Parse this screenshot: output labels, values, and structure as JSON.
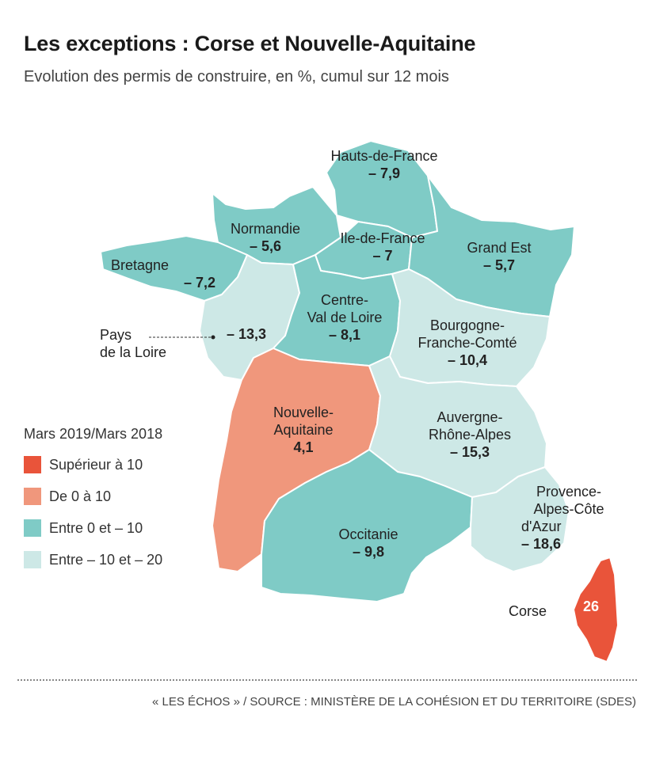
{
  "title": "Les exceptions : Corse et Nouvelle-Aquitaine",
  "subtitle": "Evolution des permis de construire, en %, cumul sur 12 mois",
  "colors": {
    "superieur_10": "#e9543a",
    "de_0_a_10": "#f0977c",
    "entre_0_et_m10": "#7fcbc6",
    "entre_m10_et_m20": "#cde8e6",
    "border": "#ffffff"
  },
  "regions": [
    {
      "id": "hauts-de-france",
      "name": "Hauts-de-France",
      "value": "– 7,9",
      "class": "entre_0_et_m10"
    },
    {
      "id": "normandie",
      "name": "Normandie",
      "value": "– 5,6",
      "class": "entre_0_et_m10"
    },
    {
      "id": "ile-de-france",
      "name": "Ile-de-France",
      "value": "– 7",
      "class": "entre_0_et_m10"
    },
    {
      "id": "grand-est",
      "name": "Grand Est",
      "value": "– 5,7",
      "class": "entre_0_et_m10"
    },
    {
      "id": "bretagne",
      "name": "Bretagne",
      "value": "– 7,2",
      "class": "entre_0_et_m10"
    },
    {
      "id": "pays-de-la-loire",
      "name_line1": "Pays",
      "name_line2": "de la Loire",
      "value": "– 13,3",
      "class": "entre_m10_et_m20"
    },
    {
      "id": "centre-val-de-loire",
      "name_line1": "Centre-",
      "name_line2": "Val de Loire",
      "value": "– 8,1",
      "class": "entre_0_et_m10"
    },
    {
      "id": "bourgogne-franche-comte",
      "name_line1": "Bourgogne-",
      "name_line2": "Franche-Comté",
      "value": "– 10,4",
      "class": "entre_m10_et_m20"
    },
    {
      "id": "nouvelle-aquitaine",
      "name_line1": "Nouvelle-",
      "name_line2": "Aquitaine",
      "value": "4,1",
      "class": "de_0_a_10"
    },
    {
      "id": "auvergne-rhone-alpes",
      "name_line1": "Auvergne-",
      "name_line2": "Rhône-Alpes",
      "value": "– 15,3",
      "class": "entre_m10_et_m20"
    },
    {
      "id": "occitanie",
      "name": "Occitanie",
      "value": "– 9,8",
      "class": "entre_0_et_m10"
    },
    {
      "id": "paca",
      "name_line1": "Provence-",
      "name_line2": "Alpes-Côte",
      "name_line3": "d'Azur",
      "value": "– 18,6",
      "class": "entre_m10_et_m20"
    },
    {
      "id": "corse",
      "name": "Corse",
      "value": "26",
      "class": "superieur_10"
    }
  ],
  "legend": {
    "title": "Mars 2019/Mars 2018",
    "items": [
      {
        "label": "Supérieur à 10",
        "class": "superieur_10"
      },
      {
        "label": "De 0 à 10",
        "class": "de_0_a_10"
      },
      {
        "label": "Entre 0 et – 10",
        "class": "entre_0_et_m10"
      },
      {
        "label": "Entre – 10 et – 20",
        "class": "entre_m10_et_m20"
      }
    ]
  },
  "source": "« LES ÉCHOS » / SOURCE : MINISTÈRE DE LA COHÉSION ET DU TERRITOIRE (SDES)"
}
